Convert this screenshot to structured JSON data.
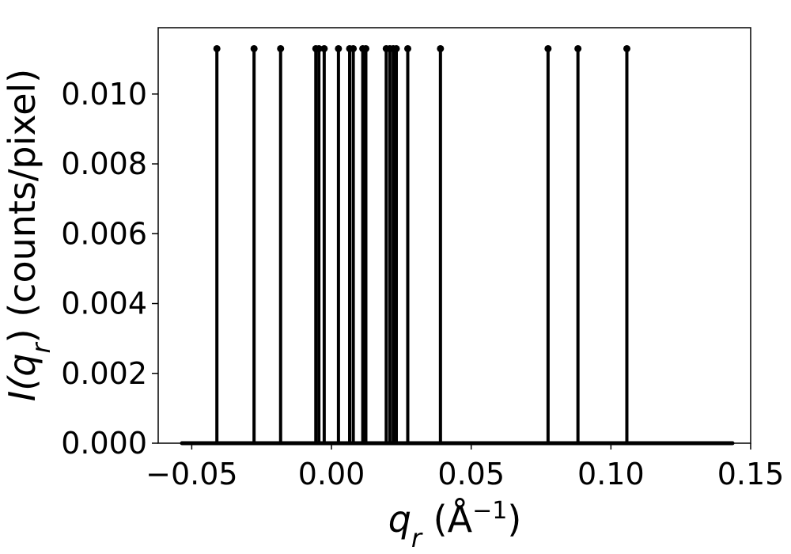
{
  "chart_data": {
    "type": "stem",
    "title": "",
    "xlabel": {
      "main": "q",
      "sub": "r",
      "unit_open": " (Å",
      "unit_exp": "−1",
      "unit_close": ")"
    },
    "ylabel": {
      "pre": "I(",
      "main": "q",
      "sub": "r",
      "post": ") (counts/pixel)"
    },
    "xlim": [
      -0.062,
      0.15
    ],
    "ylim": [
      0,
      0.0119
    ],
    "xticks": [
      -0.05,
      0.0,
      0.05,
      0.1,
      0.15
    ],
    "xtick_labels": [
      "−0.05",
      "0.00",
      "0.05",
      "0.10",
      "0.15"
    ],
    "yticks": [
      0,
      0.002,
      0.004,
      0.006,
      0.008,
      0.01
    ],
    "ytick_labels": [
      "0.000",
      "0.002",
      "0.004",
      "0.006",
      "0.008",
      "0.010"
    ],
    "grid": false,
    "baseline": {
      "y": 0,
      "x_range": [
        -0.0535,
        0.1435
      ]
    },
    "series": [
      {
        "color": "#000000",
        "x": [
          -0.041,
          -0.0277,
          -0.0182,
          -0.0056,
          -0.0045,
          -0.0026,
          0.0025,
          0.0065,
          0.0078,
          0.0112,
          0.0123,
          0.0196,
          0.0209,
          0.0221,
          0.0232,
          0.0273,
          0.039,
          0.0775,
          0.0882,
          0.1057
        ],
        "y": [
          0.0113,
          0.0113,
          0.0113,
          0.0113,
          0.0113,
          0.0113,
          0.0113,
          0.0113,
          0.0113,
          0.0113,
          0.0113,
          0.0113,
          0.0113,
          0.0113,
          0.0113,
          0.0113,
          0.0113,
          0.0113,
          0.0113,
          0.0113
        ]
      }
    ]
  }
}
